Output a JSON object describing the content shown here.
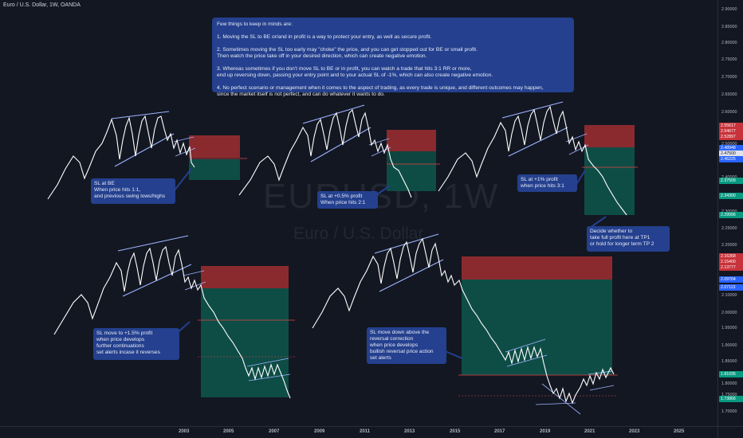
{
  "title": "Euro / U.S. Dollar, 1W, OANDA",
  "watermark": {
    "symbol": "EURUSD, 1W",
    "description": "Euro / U.S. Dollar"
  },
  "note": "Few things to keep in minds are:\n\n1. Moving the SL to BE or/and in profit is a way to protect your entry, as well as secure profit.\n\n2. Sometimes moving the SL too early may \"choke\" the price, and you can get stopped out for BE or small profit.\nThen watch the price take off in your desired direction, which can create negative emotion.\n\n3. Whereas sometimes if you don't move SL to BE or in profit, you can watch a trade that hits 3:1 RR or more,\nend up reversing down, passing your entry point and to your actual SL of -1%, which can also create negative emotion.\n\n4. No perfect scenario or management when it comes to the aspect of trading, as every trade is unique, and different outcomes may happen,\nsince the market itself is not perfect, and can do whatever it wants to do.",
  "callouts": [
    {
      "text": "SL at BE\nWhen price hits 1:1,\nand previous swing lows/highs"
    },
    {
      "text": "SL at +0.5% profit\nWhen price hits 2:1"
    },
    {
      "text": "SL at +1% profit\nwhen price hits 3:1"
    },
    {
      "text": "Decide whether to\ntake full profit here at TP1\nor hold for longer term TP 2"
    },
    {
      "text": "SL move to +1.5% profit\nwhen price develops\nfurther continuations\nset alerts incase it reverses"
    },
    {
      "text": "SL move down above the\nreversal correction\nwhen price develops\nbullish reversal price action\nset alerts"
    }
  ],
  "price_axis": {
    "labels": [
      "2.90000",
      "2.85000",
      "2.80000",
      "2.75000",
      "2.70000",
      "2.65000",
      "2.60000",
      "2.50000",
      "2.45000",
      "2.40000",
      "2.30000",
      "2.25000",
      "2.20000",
      "2.10000",
      "2.00000",
      "1.95000",
      "1.90000",
      "1.85000",
      "1.80000",
      "1.75000",
      "1.70000"
    ],
    "badges": [
      {
        "text": "2.55617",
        "color": "#c8323a"
      },
      {
        "text": "2.54677",
        "color": "#c8323a"
      },
      {
        "text": "2.52897",
        "color": "#c8323a"
      },
      {
        "text": "2.48948",
        "color": "#2962ff"
      },
      {
        "text": "2.47500",
        "color": "#e0e3eb"
      },
      {
        "text": "2.46225",
        "color": "#2962ff"
      },
      {
        "text": "2.37509",
        "color": "#089981"
      },
      {
        "text": "2.34300",
        "color": "#089981"
      },
      {
        "text": "2.29996",
        "color": "#089981"
      },
      {
        "text": "2.16368",
        "color": "#c8323a"
      },
      {
        "text": "2.15400",
        "color": "#c8323a"
      },
      {
        "text": "2.13777",
        "color": "#c8323a"
      },
      {
        "text": "2.09704",
        "color": "#2962ff"
      },
      {
        "text": "2.07113",
        "color": "#2962ff"
      },
      {
        "text": "1.81035",
        "color": "#089981"
      },
      {
        "text": "1.73866",
        "color": "#089981"
      }
    ]
  },
  "time_axis": {
    "labels": [
      "2003",
      "2005",
      "2007",
      "2009",
      "2011",
      "2013",
      "2015",
      "2017",
      "2019",
      "2021",
      "2023",
      "2025"
    ]
  },
  "colors": {
    "background": "#131722",
    "stop_zone": "#8a2a2e",
    "target_zone": "#0e4d46",
    "trendline": "#9db4ff",
    "price_line": "#ffffff",
    "callout_bg": "#24408e",
    "stop_line": "#e04646"
  }
}
